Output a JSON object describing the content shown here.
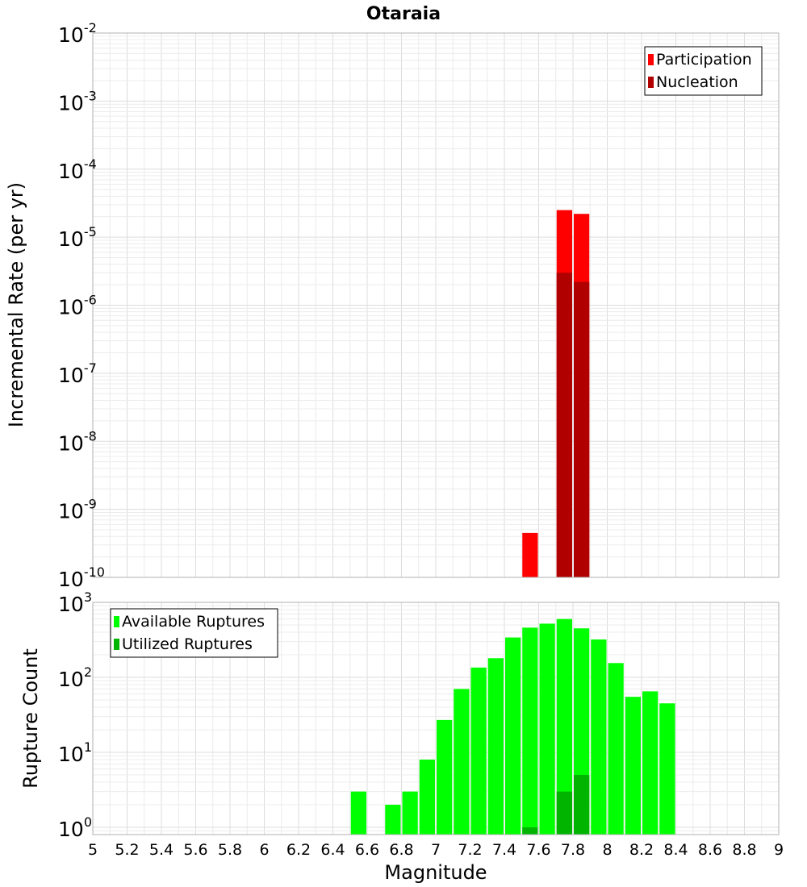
{
  "chart_data": {
    "title": "Otaraia",
    "xlabel": "Magnitude",
    "xlim": [
      5,
      9
    ],
    "xticks": [
      "5",
      "5.2",
      "5.4",
      "5.6",
      "5.8",
      "6",
      "6.2",
      "6.4",
      "6.6",
      "6.8",
      "7",
      "7.2",
      "7.4",
      "7.6",
      "7.8",
      "8",
      "8.2",
      "8.4",
      "8.6",
      "8.8",
      "9"
    ],
    "bin_width": 0.1,
    "panels": [
      {
        "type": "bar",
        "ylabel": "Incremental Rate (per yr)",
        "yscale": "log",
        "ylim": [
          1e-10,
          0.01
        ],
        "yticks": [
          {
            "value": 0.01,
            "base": "10",
            "exp": "-2"
          },
          {
            "value": 0.001,
            "base": "10",
            "exp": "-3"
          },
          {
            "value": 0.0001,
            "base": "10",
            "exp": "-4"
          },
          {
            "value": 1e-05,
            "base": "10",
            "exp": "-5"
          },
          {
            "value": 1e-06,
            "base": "10",
            "exp": "-6"
          },
          {
            "value": 1e-07,
            "base": "10",
            "exp": "-7"
          },
          {
            "value": 1e-08,
            "base": "10",
            "exp": "-8"
          },
          {
            "value": 1e-09,
            "base": "10",
            "exp": "-9"
          },
          {
            "value": 1e-10,
            "base": "10",
            "exp": "-10"
          }
        ],
        "legend_position": "top-right",
        "series": [
          {
            "name": "Participation",
            "color": "#ff0000",
            "x": [
              7.55,
              7.75,
              7.85
            ],
            "values": [
              4.5e-10,
              2.5e-05,
              2.2e-05
            ]
          },
          {
            "name": "Nucleation",
            "color": "#b00000",
            "x": [
              7.75,
              7.85
            ],
            "values": [
              3e-06,
              2.2e-06
            ]
          }
        ]
      },
      {
        "type": "bar",
        "ylabel": "Rupture Count",
        "yscale": "log",
        "ylim": [
          0.8,
          1000
        ],
        "yticks": [
          {
            "value": 1000,
            "base": "10",
            "exp": "3"
          },
          {
            "value": 100,
            "base": "10",
            "exp": "2"
          },
          {
            "value": 10,
            "base": "10",
            "exp": "1"
          },
          {
            "value": 1,
            "base": "10",
            "exp": "0"
          }
        ],
        "legend_position": "top-left",
        "series": [
          {
            "name": "Available Ruptures",
            "color": "#00ff00",
            "x": [
              6.55,
              6.75,
              6.85,
              6.95,
              7.05,
              7.15,
              7.25,
              7.35,
              7.45,
              7.55,
              7.65,
              7.75,
              7.85,
              7.95,
              8.05,
              8.15,
              8.25,
              8.35
            ],
            "values": [
              3,
              2,
              3,
              8,
              27,
              70,
              135,
              180,
              340,
              460,
              520,
              600,
              450,
              320,
              155,
              55,
              65,
              45
            ]
          },
          {
            "name": "Utilized Ruptures",
            "color": "#00b400",
            "x": [
              7.55,
              7.75,
              7.85
            ],
            "values": [
              1,
              3,
              5
            ]
          }
        ]
      }
    ]
  }
}
